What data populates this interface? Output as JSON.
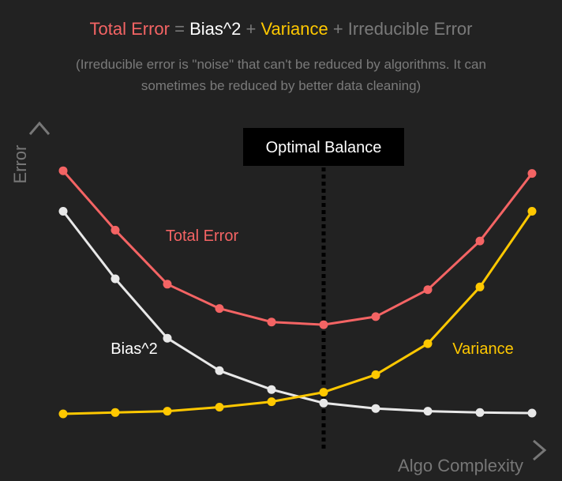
{
  "header": {
    "formula": {
      "term1": "Total Error",
      "op1": " = ",
      "term2": "Bias^2",
      "op2": " + ",
      "term3": "Variance",
      "op3": " + ",
      "term4": "Irreducible Error"
    },
    "note_line1": "(Irreducible error is \"noise\" that can't be reduced by algorithms. It can",
    "note_line2": "sometimes be reduced by better data cleaning)"
  },
  "colors": {
    "total_error": "#f46464",
    "bias": "#e8e8e8",
    "variance": "#ffc800",
    "axis": "#777777",
    "muted": "#808080",
    "background": "#222222"
  },
  "chart_data": {
    "type": "line",
    "title": "",
    "xlabel": "Algo Complexity",
    "ylabel": "Error",
    "x": [
      1,
      2,
      3,
      4,
      5,
      6,
      7,
      8,
      9,
      10
    ],
    "xlim": [
      0.5,
      10.5
    ],
    "ylim": [
      0,
      100
    ],
    "grid": false,
    "legend": "none",
    "annotation": {
      "label": "Optimal Balance",
      "x": 6
    },
    "series": [
      {
        "key": "total",
        "name": "Total Error",
        "color": "#f46464",
        "values": [
          90,
          68,
          48,
          39,
          34,
          33,
          36,
          46,
          64,
          89
        ]
      },
      {
        "key": "bias",
        "name": "Bias^2",
        "color": "#e8e8e8",
        "values": [
          75,
          50,
          28,
          16,
          9,
          4,
          2,
          1,
          0.5,
          0.3
        ]
      },
      {
        "key": "variance",
        "name": "Variance",
        "color": "#ffc800",
        "values": [
          0,
          0.5,
          1,
          2.5,
          4.5,
          8,
          14.5,
          26,
          47,
          75
        ]
      }
    ]
  }
}
